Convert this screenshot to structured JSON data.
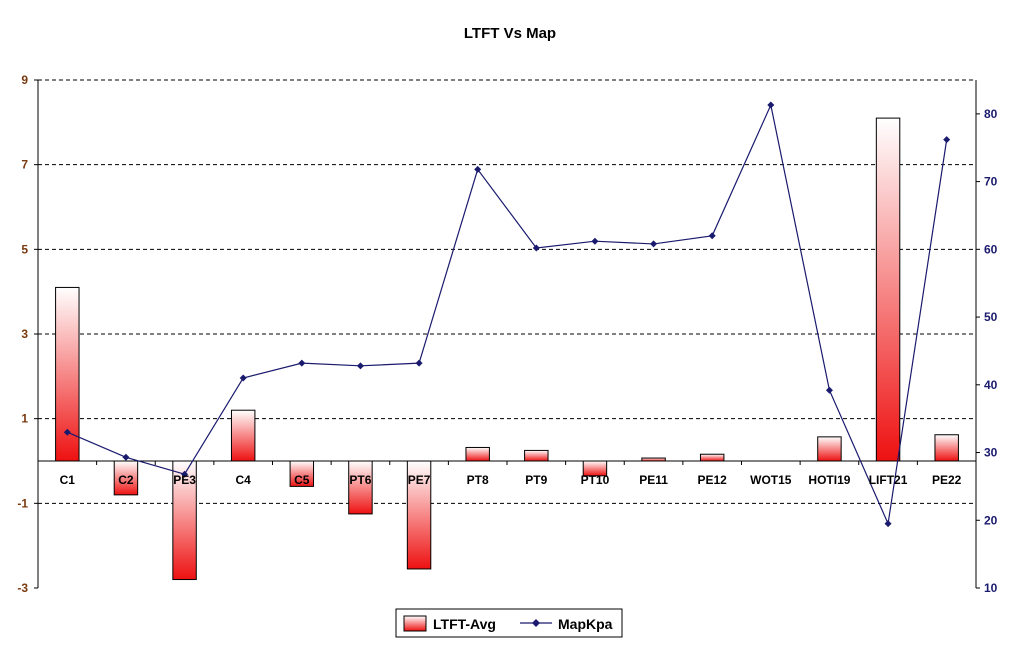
{
  "chart_data": {
    "type": "bar+line",
    "title": "LTFT Vs Map",
    "categories": [
      "C1",
      "C2",
      "PE3",
      "C4",
      "C5",
      "PT6",
      "PE7",
      "PT8",
      "PT9",
      "PT10",
      "PE11",
      "PE12",
      "WOT15",
      "HOTI19",
      "LIFT21",
      "PE22"
    ],
    "series": [
      {
        "name": "LTFT-Avg",
        "type": "bar",
        "axis": "left",
        "values": [
          4.1,
          -0.8,
          -2.8,
          1.2,
          -0.6,
          -1.25,
          -2.55,
          0.32,
          0.25,
          -0.35,
          0.07,
          0.16,
          0.0,
          0.57,
          8.1,
          0.62
        ]
      },
      {
        "name": "MapKpa",
        "type": "line",
        "axis": "right",
        "values": [
          33.0,
          29.3,
          26.8,
          41.0,
          43.2,
          42.8,
          43.2,
          71.8,
          60.2,
          61.2,
          60.8,
          62.0,
          81.3,
          39.2,
          19.5,
          76.2
        ]
      }
    ],
    "left_axis": {
      "ylim": [
        -3,
        9
      ],
      "ticks": [
        "9",
        "7",
        "5",
        "3",
        "1",
        "-1",
        "-3"
      ],
      "tick_values": [
        9,
        7,
        5,
        3,
        1,
        -1,
        -3
      ]
    },
    "right_axis": {
      "ylim": [
        10,
        85
      ],
      "ticks": [
        "80",
        "70",
        "60",
        "50",
        "40",
        "30",
        "20",
        "10"
      ],
      "tick_values": [
        80,
        70,
        60,
        50,
        40,
        30,
        20,
        10
      ]
    },
    "xlabel": "",
    "ylabel": "",
    "grid": "horizontal-dashed",
    "legend": {
      "placement": "bottom",
      "entries": [
        "LTFT-Avg",
        "MapKpa"
      ]
    },
    "colors": {
      "bar_dark": "#ee1111",
      "bar_light": "#ffffff",
      "line": "#1a1a6e",
      "left_tick": "#7a3a10",
      "right_tick": "#1a1a6e"
    }
  }
}
